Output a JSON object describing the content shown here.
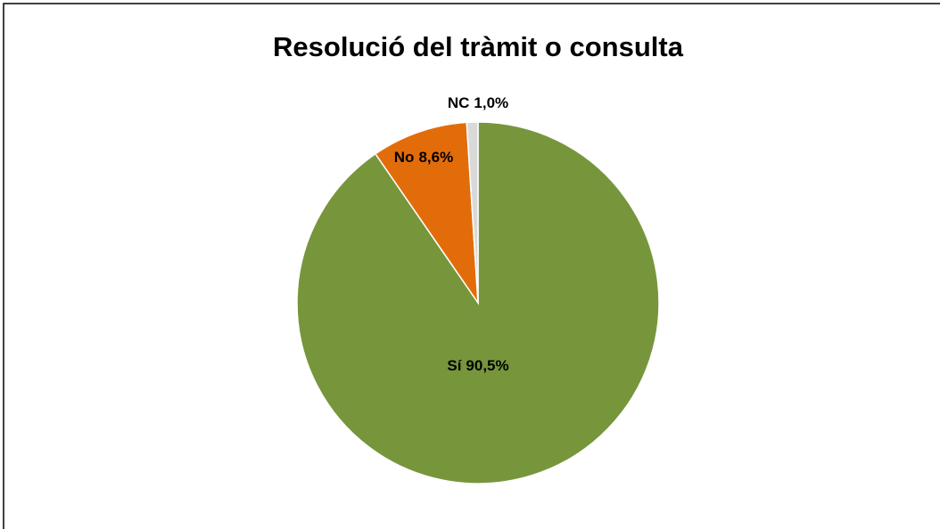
{
  "chart_data": {
    "type": "pie",
    "title": "Resolució del tràmit o consulta",
    "categories": [
      "Sí",
      "No",
      "NC"
    ],
    "values": [
      90.5,
      8.6,
      1.0
    ],
    "value_labels": [
      "90,5%",
      "8,6%",
      "1,0%"
    ],
    "colors": [
      "#77963c",
      "#e36c0a",
      "#d9d9d9"
    ]
  }
}
